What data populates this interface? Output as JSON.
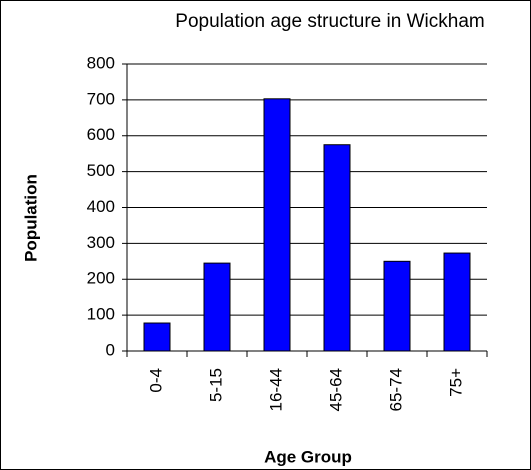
{
  "chart_data": {
    "type": "bar",
    "title": "Population age structure in Wickham",
    "x_label": "Age Group",
    "y_label": "Population",
    "categories": [
      "0-4",
      "5-15",
      "16-44",
      "45-64",
      "65-74",
      "75+"
    ],
    "values": [
      78,
      245,
      703,
      575,
      250,
      273
    ],
    "color": "#0000ff",
    "ylim": [
      0,
      800
    ],
    "yticks": [
      0,
      100,
      200,
      300,
      400,
      500,
      600,
      700,
      800
    ],
    "grid": true
  }
}
